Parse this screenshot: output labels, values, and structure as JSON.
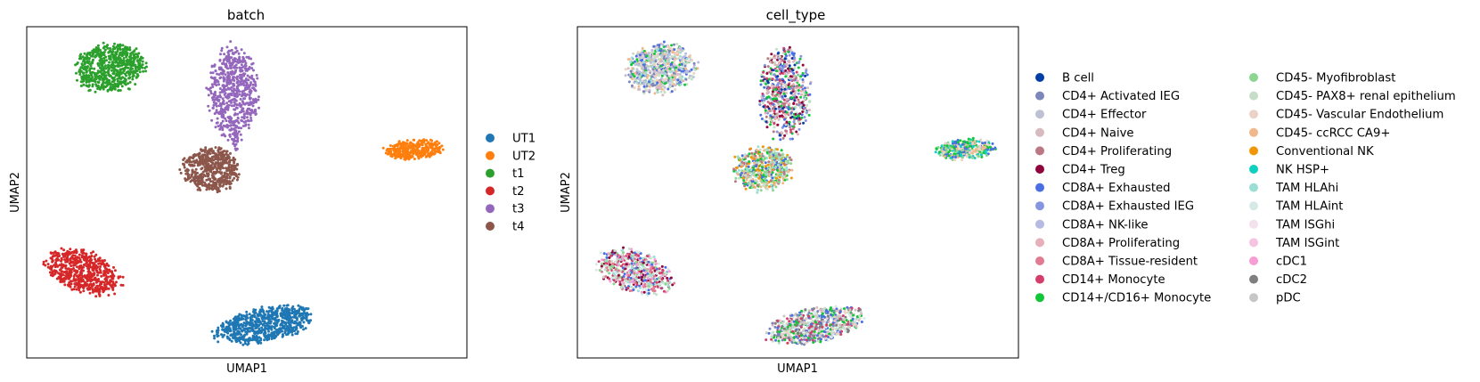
{
  "chart_data": [
    {
      "type": "scatter",
      "title": "batch",
      "xlabel": "UMAP1",
      "ylabel": "UMAP2",
      "grid": false,
      "ticks": false,
      "legend": "right",
      "legend_columns": 1,
      "xlim": [
        0,
        100
      ],
      "ylim": [
        0,
        100
      ],
      "series": [
        {
          "name": "UT1",
          "color": "#1f77b4",
          "clusters": [
            {
              "cx": 54,
              "cy": 10,
              "rx": 12,
              "ry": 5.3,
              "angle": 16,
              "n": 700
            }
          ]
        },
        {
          "name": "UT2",
          "color": "#ff7f0e",
          "clusters": [
            {
              "cx": 88,
              "cy": 63,
              "rx": 7,
              "ry": 3.2,
              "angle": 5,
              "n": 330
            }
          ]
        },
        {
          "name": "t1",
          "color": "#2ca02c",
          "clusters": [
            {
              "cx": 19,
              "cy": 87.5,
              "rx": 8.6,
              "ry": 7.6,
              "angle": 32,
              "n": 650
            }
          ]
        },
        {
          "name": "t2",
          "color": "#d62728",
          "clusters": [
            {
              "cx": 13,
              "cy": 26,
              "rx": 9.8,
              "ry": 6.3,
              "angle": -32,
              "n": 600
            }
          ]
        },
        {
          "name": "t3",
          "color": "#9467bd",
          "clusters": [
            {
              "cx": 47,
              "cy": 80,
              "rx": 6,
              "ry": 15,
              "angle": 0,
              "n": 620
            },
            {
              "cx": 47.5,
              "cy": 65,
              "rx": 0.8,
              "ry": 3,
              "angle": 0,
              "n": 18
            }
          ]
        },
        {
          "name": "t4",
          "color": "#8c564b",
          "clusters": [
            {
              "cx": 42,
              "cy": 57,
              "rx": 7,
              "ry": 7,
              "angle": -10,
              "n": 520
            }
          ]
        }
      ]
    },
    {
      "type": "scatter",
      "title": "cell_type",
      "xlabel": "UMAP1",
      "ylabel": "UMAP2",
      "grid": false,
      "ticks": false,
      "legend": "right",
      "legend_columns": 2,
      "xlim": [
        0,
        100
      ],
      "ylim": [
        0,
        100
      ],
      "clusters": [
        {
          "cx": 19,
          "cy": 87.5,
          "rx": 8.6,
          "ry": 7.6,
          "angle": 32,
          "n": 650,
          "mix": [
            "CD4+ Naive",
            "CD4+ Effector",
            "CD45- PAX8+ renal epithelium",
            "CD8A+ Exhausted",
            "CD14+/CD16+ Monocyte",
            "CD45- Vascular Endothelium",
            "CD4+ Activated IEG",
            "TAM HLAhi",
            "CD45- ccRCC CA9+",
            "CD8A+ NK-like"
          ]
        },
        {
          "cx": 47,
          "cy": 80,
          "rx": 6,
          "ry": 15,
          "angle": 0,
          "n": 620,
          "mix": [
            "B cell",
            "CD8A+ Exhausted",
            "CD4+ Proliferating",
            "CD4+ Treg",
            "CD14+ Monocyte",
            "CD4+ Naive",
            "CD8A+ Exhausted IEG",
            "CD8A+ Proliferating",
            "CD14+/CD16+ Monocyte",
            "CD45- PAX8+ renal epithelium"
          ]
        },
        {
          "cx": 42,
          "cy": 57,
          "rx": 7,
          "ry": 7,
          "angle": -10,
          "n": 520,
          "mix": [
            "Conventional NK",
            "CD45- ccRCC CA9+",
            "CD14+/CD16+ Monocyte",
            "CD8A+ Exhausted",
            "TAM HLAhi",
            "CD4+ Proliferating",
            "CD45- Myofibroblast",
            "CD45- PAX8+ renal epithelium"
          ]
        },
        {
          "cx": 88,
          "cy": 63,
          "rx": 7,
          "ry": 3.2,
          "angle": 5,
          "n": 330,
          "mix": [
            "CD45- ccRCC CA9+",
            "CD45- Vascular Endothelium",
            "CD14+/CD16+ Monocyte",
            "CD45- Myofibroblast",
            "CD8A+ Exhausted",
            "NK HSP+"
          ]
        },
        {
          "cx": 13,
          "cy": 26,
          "rx": 9.8,
          "ry": 6.3,
          "angle": -32,
          "n": 600,
          "mix": [
            "TAM HLAhi",
            "CD45- PAX8+ renal epithelium",
            "CD14+ Monocyte",
            "CD4+ Treg",
            "CD8A+ Exhausted",
            "TAM HLAint",
            "CD45- Myofibroblast",
            "cDC1",
            "CD8A+ Tissue-resident"
          ]
        },
        {
          "cx": 54,
          "cy": 10,
          "rx": 12,
          "ry": 5.3,
          "angle": 16,
          "n": 700,
          "mix": [
            "CD45- PAX8+ renal epithelium",
            "CD14+/CD16+ Monocyte",
            "CD8A+ Exhausted",
            "CD4+ Naive",
            "CD45- Vascular Endothelium",
            "CD14+ Monocyte",
            "CD4+ Activated IEG",
            "TAM HLAint",
            "cDC2",
            "pDC"
          ]
        }
      ],
      "series": [
        {
          "name": "B cell",
          "color": "#023fa5"
        },
        {
          "name": "CD4+ Activated IEG",
          "color": "#7d87b9"
        },
        {
          "name": "CD4+ Effector",
          "color": "#bec1d4"
        },
        {
          "name": "CD4+ Naive",
          "color": "#d6bcc0"
        },
        {
          "name": "CD4+ Proliferating",
          "color": "#bb7784"
        },
        {
          "name": "CD4+ Treg",
          "color": "#8e063b"
        },
        {
          "name": "CD8A+ Exhausted",
          "color": "#4a6fe3"
        },
        {
          "name": "CD8A+ Exhausted IEG",
          "color": "#8595e1"
        },
        {
          "name": "CD8A+ NK-like",
          "color": "#b5bbe3"
        },
        {
          "name": "CD8A+ Proliferating",
          "color": "#e6afb9"
        },
        {
          "name": "CD8A+ Tissue-resident",
          "color": "#e07b91"
        },
        {
          "name": "CD14+ Monocyte",
          "color": "#d33f6a"
        },
        {
          "name": "CD14+/CD16+ Monocyte",
          "color": "#11c638"
        },
        {
          "name": "CD45- Myofibroblast",
          "color": "#8dd593"
        },
        {
          "name": "CD45- PAX8+ renal epithelium",
          "color": "#c6dec7"
        },
        {
          "name": "CD45- Vascular Endothelium",
          "color": "#ead3c6"
        },
        {
          "name": "CD45- ccRCC CA9+",
          "color": "#f0b98d"
        },
        {
          "name": "Conventional NK",
          "color": "#ef9708"
        },
        {
          "name": "NK HSP+",
          "color": "#0fcfc0"
        },
        {
          "name": "TAM HLAhi",
          "color": "#9cded6"
        },
        {
          "name": "TAM HLAint",
          "color": "#d5eae7"
        },
        {
          "name": "TAM ISGhi",
          "color": "#f3e1eb"
        },
        {
          "name": "TAM ISGint",
          "color": "#f6c4e1"
        },
        {
          "name": "cDC1",
          "color": "#f79cd4"
        },
        {
          "name": "cDC2",
          "color": "#7f7f7f"
        },
        {
          "name": "pDC",
          "color": "#c7c7c7"
        }
      ]
    }
  ]
}
